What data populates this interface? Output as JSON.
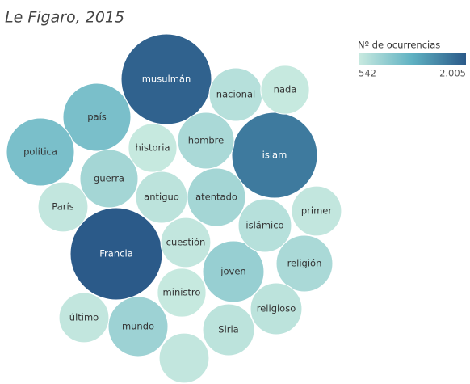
{
  "chart_data": {
    "type": "packed-bubble",
    "title": "Le Figaro, 2015",
    "categories": [
      "Francia",
      "musulmán",
      "islam",
      "país",
      "política",
      "joven",
      "mundo",
      "guerra",
      "atentado",
      "hombre",
      "nacional",
      "nada",
      "historia",
      "antiguo",
      "París",
      "cuestión",
      "islámico",
      "primer",
      "religión",
      "ministro",
      "religioso",
      "Siria",
      "último",
      null
    ],
    "values": [
      2005,
      1935,
      1735,
      1090,
      1090,
      890,
      845,
      800,
      800,
      755,
      670,
      560,
      560,
      630,
      590,
      590,
      670,
      590,
      755,
      560,
      630,
      630,
      590,
      590
    ],
    "color_scale": {
      "title": "Nº de ocurrencias",
      "colors": [
        "#c9eae0",
        "#5fb1c2",
        "#2b5a89"
      ],
      "ticks": [
        542,
        {
          "value": 2005,
          "label": "2.005"
        }
      ]
    }
  }
}
